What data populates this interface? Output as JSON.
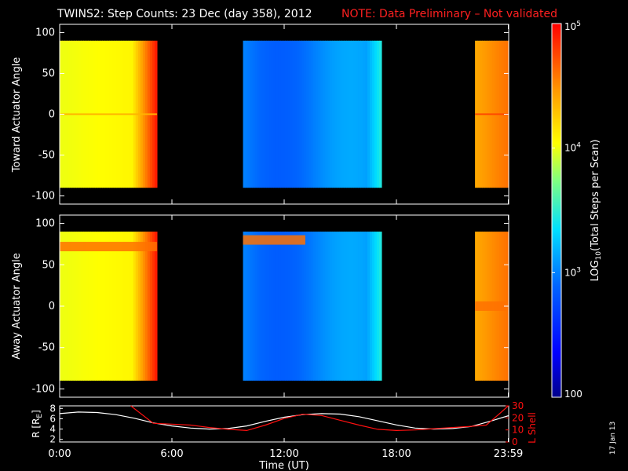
{
  "header": {
    "title": "TWINS2: Step Counts: 23 Dec (day 358), 2012",
    "note": "NOTE: Data Preliminary – Not validated",
    "note_color": "#ff2020"
  },
  "side_stamp": "17 Jan 13",
  "colorbar": {
    "label": "LOG10(Total Steps per Scan)",
    "label_main": "LOG",
    "label_sub": "10",
    "label_rest": "(Total Steps per Scan)",
    "scale": "log",
    "range": [
      100,
      100000
    ],
    "ticks": [
      {
        "value": 100,
        "base": "100",
        "exp": ""
      },
      {
        "value": 1000,
        "base": "10",
        "exp": "3"
      },
      {
        "value": 10000,
        "base": "10",
        "exp": "4"
      },
      {
        "value": 100000,
        "base": "10",
        "exp": "5"
      }
    ]
  },
  "chart_data": [
    {
      "type": "heatmap",
      "title": "",
      "ylabel": "Toward Actuator Angle",
      "xlabel": "",
      "xlim_hours": [
        0,
        24
      ],
      "ylim": [
        -110,
        110
      ],
      "yticks": [
        "100",
        "50",
        "0",
        "-50",
        "-100"
      ],
      "ytick_values": [
        100,
        50,
        0,
        -50,
        -100
      ],
      "data_extent_angle": [
        -90,
        90
      ],
      "data_segments_hours": [
        [
          0,
          5.2
        ],
        [
          9.8,
          17.2
        ],
        [
          22.2,
          24
        ]
      ],
      "log_counts_by_segment": [
        {
          "start": 4.0,
          "end": 4.1,
          "dip_at_zero": true
        },
        {
          "start": 3.0,
          "end": 2.4,
          "dip_at_zero": false
        },
        {
          "start": 4.4,
          "end": 4.6,
          "dip_at_zero": true
        }
      ]
    },
    {
      "type": "heatmap",
      "title": "",
      "ylabel": "Away Actuator Angle",
      "xlabel": "",
      "xlim_hours": [
        0,
        24
      ],
      "ylim": [
        -110,
        110
      ],
      "yticks": [
        "100",
        "50",
        "0",
        "-50",
        "-100"
      ],
      "ytick_values": [
        100,
        50,
        0,
        -50,
        -100
      ],
      "data_extent_angle": [
        -90,
        90
      ],
      "data_segments_hours": [
        [
          0,
          5.2
        ],
        [
          9.8,
          17.2
        ],
        [
          22.2,
          24
        ]
      ],
      "log_counts_by_segment": [
        {
          "start": 4.0,
          "end": 4.1,
          "hot_band_angle": 72
        },
        {
          "start": 3.0,
          "end": 2.4,
          "hot_band_angle": 80
        },
        {
          "start": 4.4,
          "end": 4.6,
          "hot_band_angle": 0
        }
      ]
    },
    {
      "type": "line",
      "title": "",
      "xlabel": "Time (UT)",
      "xticks": [
        "0:00",
        "6:00",
        "12:00",
        "18:00",
        "23:59"
      ],
      "xtick_hours": [
        0,
        6,
        12,
        18,
        23.98
      ],
      "ylabel_left": "R [RE]",
      "ylabel_left_main": "R [R",
      "ylabel_left_sub": "E",
      "ylabel_left_close": "]",
      "yticks_left": [
        "2",
        "4",
        "6",
        "8"
      ],
      "ylim_left": [
        1.5,
        8.5
      ],
      "ylabel_right": "L Shell",
      "yticks_right": [
        "0",
        "10",
        "20",
        "30"
      ],
      "ylim_right": [
        0,
        30
      ],
      "series": [
        {
          "color": "#ffffff",
          "axis": "left",
          "x": [
            0,
            1,
            2,
            3,
            4,
            5,
            6,
            7,
            8,
            9,
            10,
            11,
            12,
            13,
            14,
            15,
            16,
            17,
            18,
            19,
            20,
            21,
            22,
            23,
            24
          ],
          "y": [
            7.0,
            7.3,
            7.2,
            6.8,
            6.1,
            5.2,
            4.6,
            4.2,
            4.0,
            4.1,
            4.6,
            5.5,
            6.3,
            6.8,
            7.0,
            6.9,
            6.4,
            5.6,
            4.8,
            4.2,
            4.0,
            4.1,
            4.5,
            5.5,
            6.6
          ]
        },
        {
          "color": "#ff1010",
          "axis": "right",
          "x": [
            3.8,
            5.0,
            6.0,
            7.0,
            8.0,
            9.0,
            10.0,
            11.0,
            12.0,
            13.0,
            14.0,
            15.0,
            16.0,
            17.0,
            18.0,
            19.0,
            20.0,
            21.0,
            22.0,
            22.8,
            23.4,
            23.98
          ],
          "y": [
            30,
            15.5,
            14.8,
            14.0,
            12.0,
            10.5,
            9.5,
            14.0,
            19.5,
            23.0,
            22.0,
            18.0,
            14.0,
            10.5,
            9.5,
            10.0,
            11.0,
            12.0,
            13.0,
            14.0,
            22.0,
            30
          ]
        }
      ]
    }
  ]
}
